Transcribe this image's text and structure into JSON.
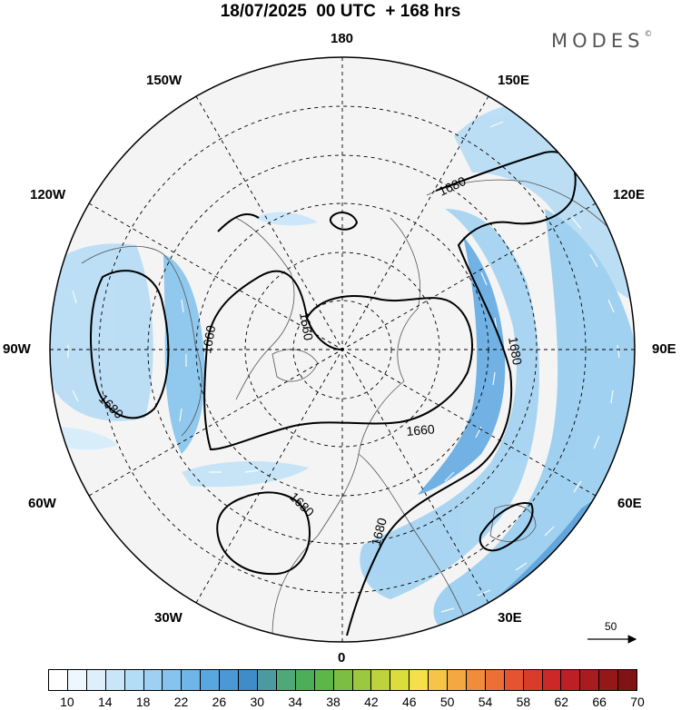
{
  "title": "18/07/2025  00 UTC  + 168 hrs",
  "brand": "MODES",
  "brand_mark": "©",
  "longitude_labels": {
    "l180": "180",
    "l150w": "150W",
    "l150e": "150E",
    "l120w": "120W",
    "l120e": "120E",
    "l90w": "90W",
    "l90e": "90E",
    "l60w": "60W",
    "l60e": "60E",
    "l30w": "30W",
    "l30e": "30E",
    "l0": "0"
  },
  "contour_labels": {
    "c1": "1680",
    "c2": "1660",
    "c3": "1660",
    "c4": "1680",
    "c5": "1680",
    "c6": "1660",
    "c7": "1680",
    "c8": "1680"
  },
  "reference_vector": {
    "value": "50"
  },
  "colorbar": {
    "ticks": [
      "10",
      "14",
      "18",
      "22",
      "26",
      "30",
      "34",
      "38",
      "42",
      "46",
      "50",
      "54",
      "58",
      "62",
      "66",
      "70"
    ],
    "colors": [
      "#ffffff",
      "#eef7fd",
      "#ddeffb",
      "#c9e6f9",
      "#b3dcf6",
      "#9dd0f2",
      "#86c3ee",
      "#6fb5e8",
      "#5aa6e0",
      "#4a98d6",
      "#3f8cc8",
      "#4c9aa0",
      "#50a878",
      "#4cae58",
      "#5cb648",
      "#7cbe44",
      "#9cc840",
      "#bcd23e",
      "#dcdc3c",
      "#f6e04a",
      "#f6c446",
      "#f4a842",
      "#f08c3c",
      "#ec7036",
      "#e45430",
      "#da3c2c",
      "#cc2828",
      "#bc2024",
      "#a81c20",
      "#941818",
      "#801414"
    ]
  }
}
